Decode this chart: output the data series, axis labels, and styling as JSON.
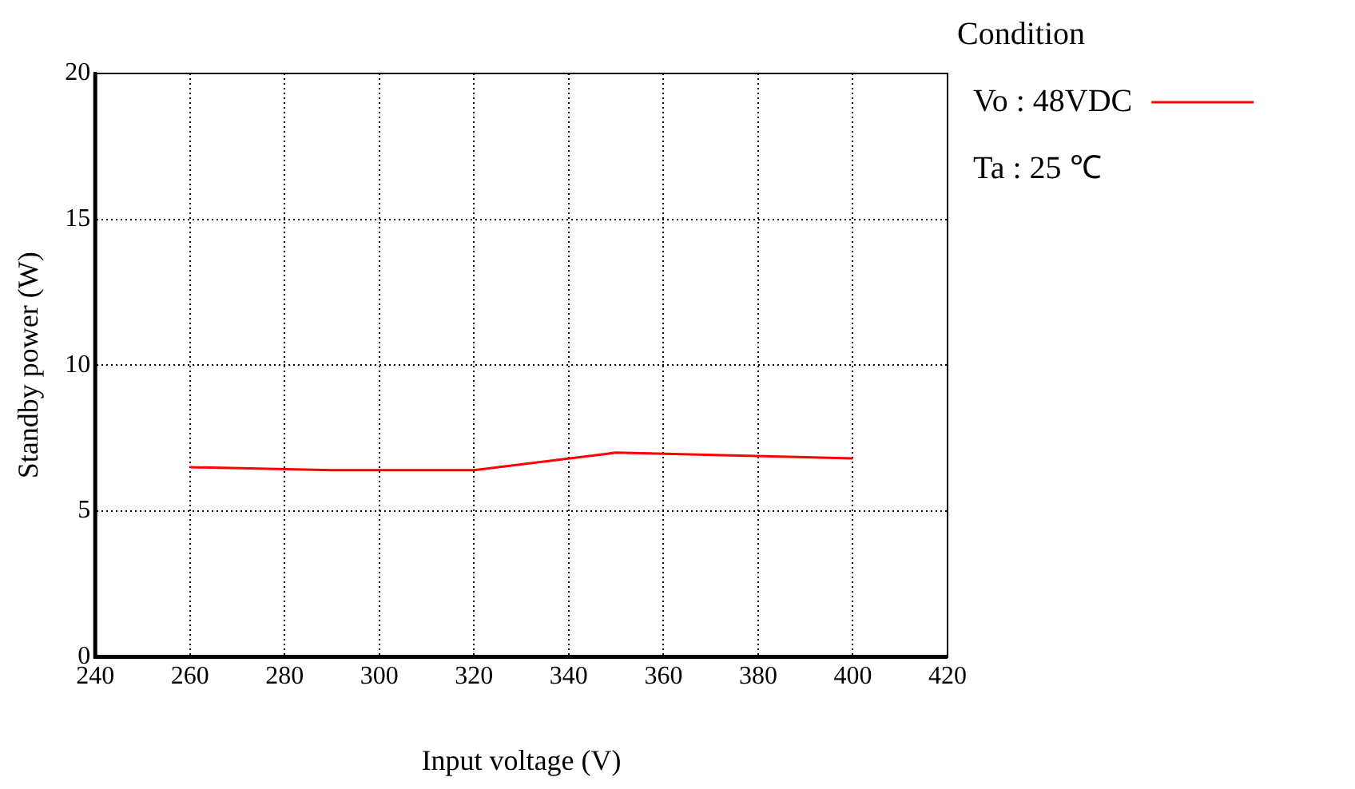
{
  "chart_data": {
    "type": "line",
    "xlabel": "Input voltage (V)",
    "ylabel": "Standby power (W)",
    "legend_title": "Condition",
    "legend": "top right",
    "x": [
      260,
      290,
      320,
      350,
      400
    ],
    "series": [
      {
        "name": "Vo : 48VDC",
        "color": "#ff0000",
        "values": [
          6.5,
          6.4,
          6.4,
          7.0,
          6.8
        ]
      }
    ],
    "xlim": [
      240,
      420
    ],
    "xticks": [
      240,
      260,
      280,
      300,
      320,
      340,
      360,
      380,
      400,
      420
    ],
    "ylim": [
      0,
      20
    ],
    "yticks": [
      0,
      5,
      10,
      15,
      20
    ],
    "grid": true,
    "marker": "none",
    "line_style": "solid",
    "annotations": [
      "Ta : 25 ℃"
    ]
  }
}
